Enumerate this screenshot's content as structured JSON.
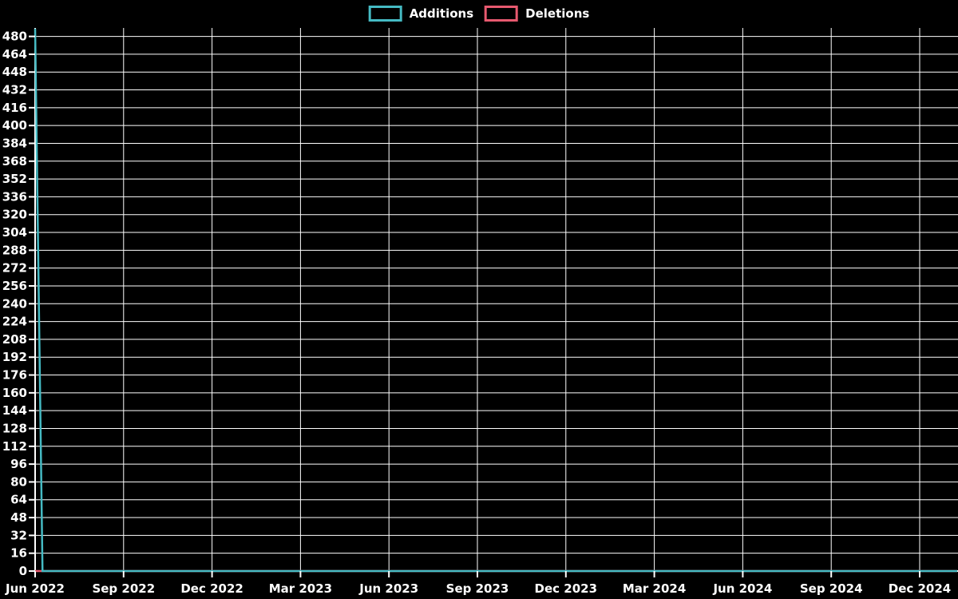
{
  "legend": {
    "items": [
      {
        "label": "Additions",
        "color": "#45bac3"
      },
      {
        "label": "Deletions",
        "color": "#e7596f"
      }
    ]
  },
  "chart_data": {
    "type": "line",
    "title": "",
    "xlabel": "",
    "ylabel": "",
    "background_color": "#000000",
    "gridline_color": "#ffffff",
    "axis_color": "#ffffff",
    "text_color": "#ffffff",
    "grid": true,
    "legend_position": "top-center",
    "x_ticks": [
      "Jun 2022",
      "Sep 2022",
      "Dec 2022",
      "Mar 2023",
      "Jun 2023",
      "Sep 2023",
      "Dec 2023",
      "Mar 2024",
      "Jun 2024",
      "Sep 2024",
      "Dec 2024"
    ],
    "y_ticks": [
      0,
      16,
      32,
      48,
      64,
      80,
      96,
      112,
      128,
      144,
      160,
      176,
      192,
      208,
      224,
      240,
      256,
      272,
      288,
      304,
      320,
      336,
      352,
      368,
      384,
      400,
      416,
      432,
      448,
      464,
      480
    ],
    "ylim": [
      0,
      487.6
    ],
    "series": [
      {
        "name": "Deletions",
        "color": "#e7596f",
        "points": [
          {
            "x_frac": 0.0,
            "y": 0
          },
          {
            "x_frac": 1.0,
            "y": 0
          }
        ]
      },
      {
        "name": "Additions",
        "color": "#45bac3",
        "points": [
          {
            "x_frac": 0.0,
            "y": 487
          },
          {
            "x_frac": 0.008,
            "y": 0
          },
          {
            "x_frac": 1.0,
            "y": 0
          }
        ]
      }
    ],
    "note": "Weekly additions spike to ~487 in the first week of Jun 2022 then drop to 0 through Dec 2024; deletions are 0 for the whole period."
  }
}
